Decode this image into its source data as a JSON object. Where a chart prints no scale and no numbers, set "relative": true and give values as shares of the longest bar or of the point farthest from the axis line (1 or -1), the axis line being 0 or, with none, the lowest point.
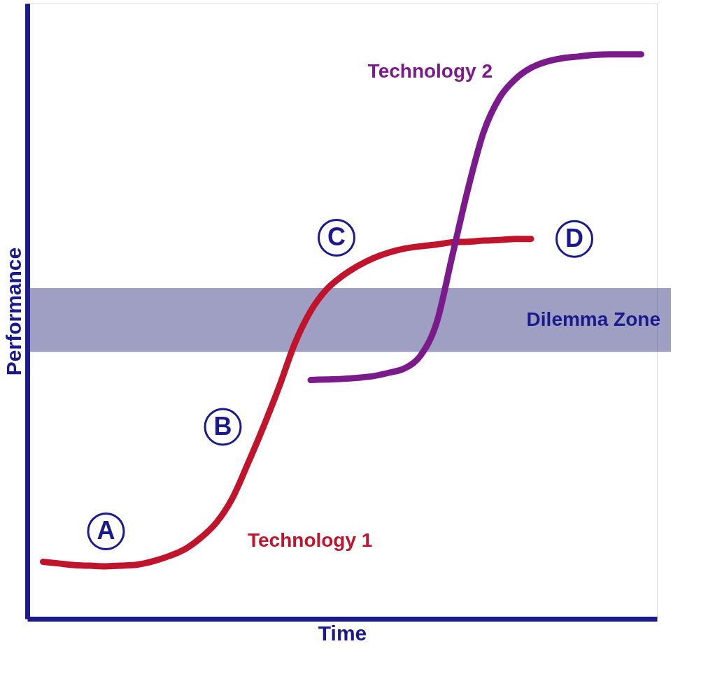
{
  "chart_data": {
    "type": "line",
    "relative": true,
    "xlabel": "Time",
    "ylabel": "Performance",
    "line_style": "solid",
    "categories": [
      null,
      null,
      null,
      null,
      null,
      null,
      null,
      null,
      null,
      null,
      null,
      null,
      null,
      null,
      null,
      null,
      null,
      null,
      null,
      null,
      null,
      null,
      null,
      null,
      null,
      null,
      null,
      null,
      null,
      null,
      null,
      null,
      null,
      null,
      null,
      null,
      null,
      null,
      null
    ],
    "series": [
      {
        "name": "Technology 1",
        "color": "#c0142c",
        "values": [
          0.101,
          0.098,
          0.095,
          0.094,
          0.093,
          0.094,
          0.096,
          0.102,
          0.111,
          0.123,
          0.143,
          0.17,
          0.212,
          0.274,
          0.34,
          0.411,
          0.488,
          0.545,
          0.583,
          0.607,
          0.625,
          0.639,
          0.649,
          0.656,
          0.66,
          0.663,
          0.667,
          0.668,
          0.67,
          0.671,
          0.673,
          0.673,
          null,
          null,
          null,
          null,
          null,
          null,
          null
        ]
      },
      {
        "name": "Technology 2",
        "color": "#7b1a8a",
        "values": [
          null,
          null,
          null,
          null,
          null,
          null,
          null,
          null,
          null,
          null,
          null,
          null,
          null,
          null,
          null,
          null,
          null,
          0.423,
          0.424,
          0.425,
          0.427,
          0.43,
          0.436,
          0.444,
          0.467,
          0.524,
          0.643,
          0.762,
          0.863,
          0.923,
          0.956,
          0.976,
          0.987,
          0.993,
          0.996,
          0.999,
          1,
          1,
          1
        ]
      }
    ],
    "bands": [
      {
        "axis": "y",
        "from": 0.473,
        "to": 0.586,
        "label": "Dilemma Zone",
        "color": "#2a2a7a"
      }
    ],
    "annotations": [
      "A",
      "B",
      "C",
      "D"
    ]
  }
}
